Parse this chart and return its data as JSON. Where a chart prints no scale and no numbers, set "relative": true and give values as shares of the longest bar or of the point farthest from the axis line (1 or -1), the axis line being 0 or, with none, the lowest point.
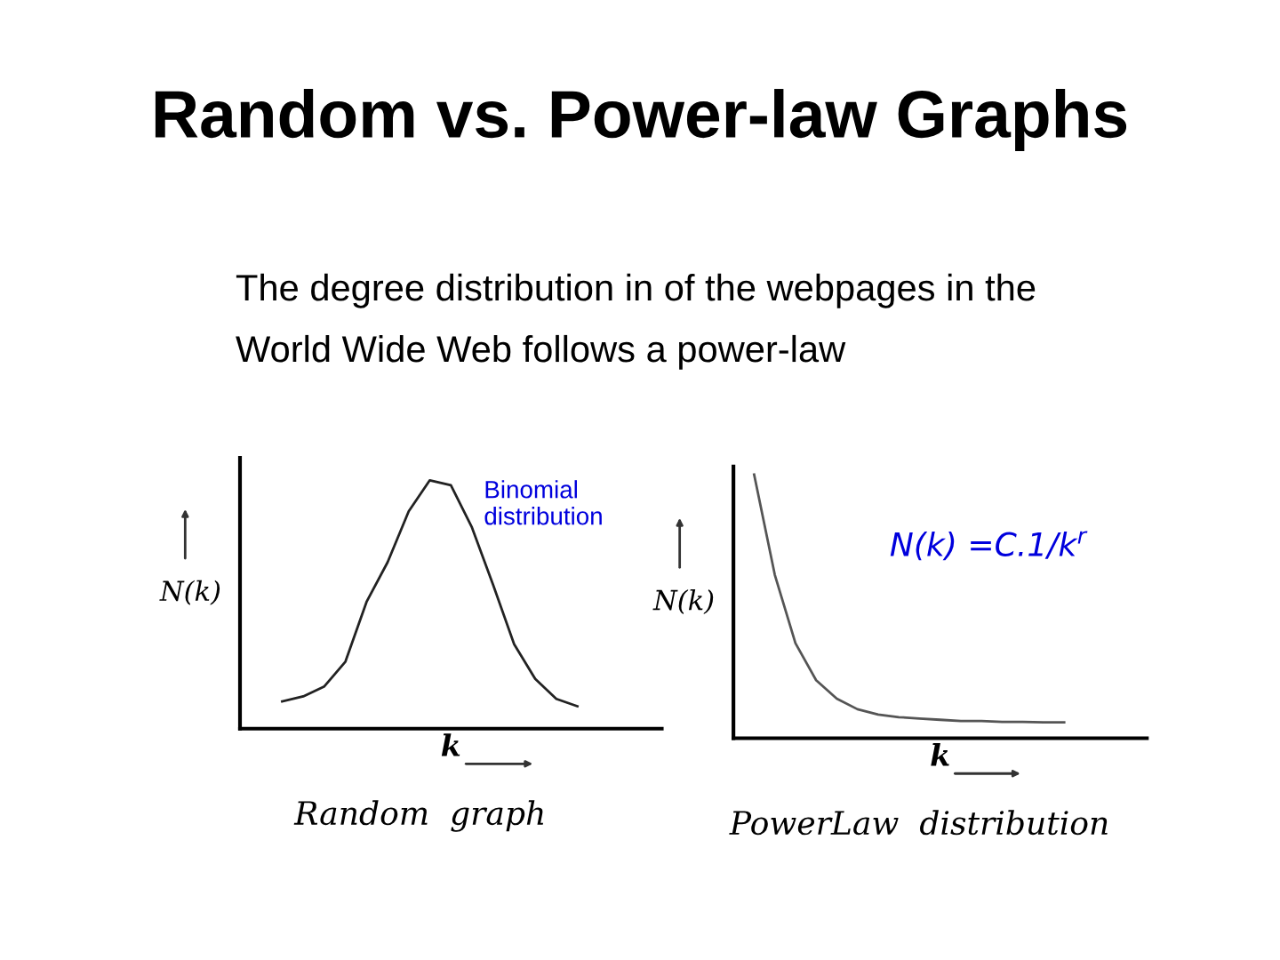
{
  "chart_data": [
    {
      "type": "line",
      "relative": true,
      "title": "Random vs. Power-law Graphs",
      "subtitle": "The degree distribution in of the webpages in the\nWorld Wide Web follows a power-law",
      "xlabel": "k",
      "ylabel": "N(k)",
      "categories": [
        null,
        null,
        null,
        null,
        null,
        null,
        null,
        null,
        null,
        null,
        null,
        null,
        null,
        null,
        null,
        null,
        null,
        null,
        null,
        null,
        null
      ],
      "series": [
        {
          "color": "#222222",
          "values": [
            null,
            null,
            0.11,
            0.13,
            0.17,
            0.27,
            0.51,
            0.67,
            0.875,
            1.0,
            0.98,
            0.81,
            0.58,
            0.34,
            0.2,
            0.12,
            0.09,
            null,
            null,
            null,
            null
          ]
        }
      ],
      "annotations": [
        "Binomial\ndistribution",
        "Random  graph"
      ]
    },
    {
      "type": "line",
      "relative": true,
      "xlabel": "k",
      "ylabel": "N(k)",
      "categories": [
        null,
        null,
        null,
        null,
        null,
        null,
        null,
        null,
        null,
        null,
        null,
        null,
        null,
        null,
        null,
        null,
        null,
        null,
        null,
        null,
        null
      ],
      "series": [
        {
          "color": "#555555",
          "values": [
            null,
            1.0,
            0.62,
            0.36,
            0.22,
            0.15,
            0.11,
            0.09,
            0.08,
            0.075,
            0.07,
            0.065,
            0.065,
            0.062,
            0.062,
            0.06,
            0.06,
            null,
            null,
            null,
            null
          ]
        }
      ],
      "annotations": [
        "N(k) =C.1/k$^{r}$",
        "PowerLaw  distribution"
      ]
    }
  ]
}
